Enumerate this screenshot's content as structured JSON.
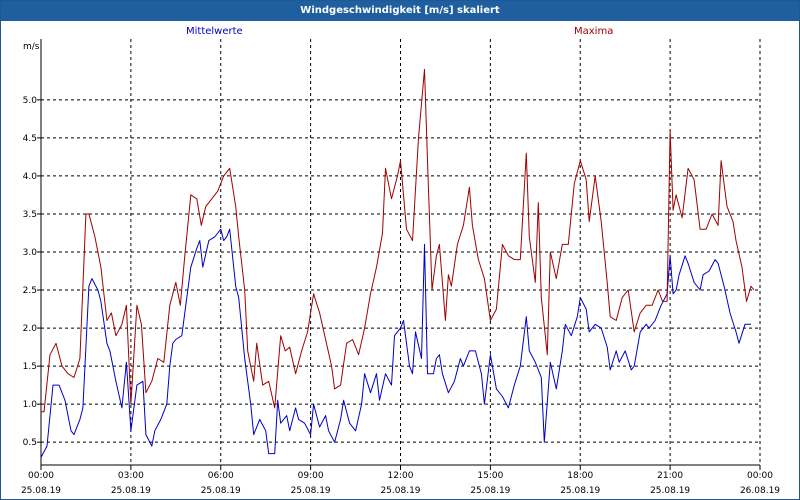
{
  "window": {
    "title": "Windgeschwindigkeit [m/s] skaliert"
  },
  "colors": {
    "titlebar": "#1f5f9f",
    "mittel": "#0000c8",
    "maxima": "#a00000",
    "grid": "#000000"
  },
  "chart_data": {
    "type": "line",
    "title": "Windgeschwindigkeit [m/s] skaliert",
    "ylabel": "m/s",
    "xlabel": "",
    "ylim": [
      0.2,
      5.8
    ],
    "xlim": [
      0,
      24
    ],
    "grid": true,
    "y_ticks": [
      "0.5",
      "1.0",
      "1.5",
      "2.0",
      "2.5",
      "3.0",
      "3.5",
      "4.0",
      "4.5",
      "5.0"
    ],
    "x_ticks": [
      {
        "time": "00:00",
        "date": "25.08.19"
      },
      {
        "time": "03:00",
        "date": "25.08.19"
      },
      {
        "time": "06:00",
        "date": "25.08.19"
      },
      {
        "time": "09:00",
        "date": "25.08.19"
      },
      {
        "time": "12:00",
        "date": "25.08.19"
      },
      {
        "time": "15:00",
        "date": "25.08.19"
      },
      {
        "time": "18:00",
        "date": "25.08.19"
      },
      {
        "time": "21:00",
        "date": "25.08.19"
      },
      {
        "time": "00:00",
        "date": "26.08.19"
      }
    ],
    "series": [
      {
        "name": "Mittelwerte",
        "color": "#0000c8",
        "points": [
          [
            0.0,
            0.3
          ],
          [
            0.2,
            0.45
          ],
          [
            0.4,
            1.25
          ],
          [
            0.6,
            1.25
          ],
          [
            0.8,
            1.05
          ],
          [
            1.0,
            0.65
          ],
          [
            1.1,
            0.6
          ],
          [
            1.3,
            0.8
          ],
          [
            1.4,
            0.95
          ],
          [
            1.6,
            2.55
          ],
          [
            1.7,
            2.65
          ],
          [
            1.9,
            2.5
          ],
          [
            2.0,
            2.35
          ],
          [
            2.2,
            1.8
          ],
          [
            2.3,
            1.7
          ],
          [
            2.5,
            1.3
          ],
          [
            2.7,
            0.95
          ],
          [
            2.85,
            1.55
          ],
          [
            3.0,
            0.65
          ],
          [
            3.2,
            1.25
          ],
          [
            3.4,
            1.3
          ],
          [
            3.5,
            0.6
          ],
          [
            3.7,
            0.45
          ],
          [
            3.8,
            0.65
          ],
          [
            4.0,
            0.8
          ],
          [
            4.2,
            1.0
          ],
          [
            4.3,
            1.5
          ],
          [
            4.4,
            1.8
          ],
          [
            4.5,
            1.85
          ],
          [
            4.7,
            1.9
          ],
          [
            4.85,
            2.35
          ],
          [
            5.0,
            2.8
          ],
          [
            5.2,
            3.05
          ],
          [
            5.3,
            3.15
          ],
          [
            5.4,
            2.8
          ],
          [
            5.6,
            3.15
          ],
          [
            5.8,
            3.2
          ],
          [
            5.9,
            3.25
          ],
          [
            6.0,
            3.3
          ],
          [
            6.1,
            3.15
          ],
          [
            6.2,
            3.2
          ],
          [
            6.3,
            3.3
          ],
          [
            6.5,
            2.55
          ],
          [
            6.6,
            2.4
          ],
          [
            6.8,
            1.6
          ],
          [
            7.0,
            1.0
          ],
          [
            7.1,
            0.6
          ],
          [
            7.3,
            0.8
          ],
          [
            7.5,
            0.65
          ],
          [
            7.6,
            0.35
          ],
          [
            7.8,
            0.35
          ],
          [
            7.9,
            1.05
          ],
          [
            8.0,
            0.75
          ],
          [
            8.2,
            0.85
          ],
          [
            8.3,
            0.65
          ],
          [
            8.5,
            0.95
          ],
          [
            8.6,
            0.8
          ],
          [
            8.8,
            0.75
          ],
          [
            9.0,
            0.6
          ],
          [
            9.1,
            1.0
          ],
          [
            9.3,
            0.7
          ],
          [
            9.5,
            0.85
          ],
          [
            9.6,
            0.65
          ],
          [
            9.8,
            0.5
          ],
          [
            10.0,
            0.8
          ],
          [
            10.1,
            1.05
          ],
          [
            10.3,
            0.75
          ],
          [
            10.5,
            0.65
          ],
          [
            10.7,
            1.0
          ],
          [
            10.8,
            1.4
          ],
          [
            11.0,
            1.15
          ],
          [
            11.2,
            1.4
          ],
          [
            11.3,
            1.05
          ],
          [
            11.5,
            1.4
          ],
          [
            11.7,
            1.25
          ],
          [
            11.8,
            1.9
          ],
          [
            12.0,
            2.0
          ],
          [
            12.1,
            2.1
          ],
          [
            12.3,
            1.5
          ],
          [
            12.4,
            1.4
          ],
          [
            12.5,
            1.95
          ],
          [
            12.7,
            1.6
          ],
          [
            12.8,
            3.1
          ],
          [
            12.9,
            1.4
          ],
          [
            13.1,
            1.4
          ],
          [
            13.2,
            1.6
          ],
          [
            13.3,
            1.65
          ],
          [
            13.4,
            1.4
          ],
          [
            13.6,
            1.15
          ],
          [
            13.8,
            1.3
          ],
          [
            14.0,
            1.6
          ],
          [
            14.1,
            1.5
          ],
          [
            14.3,
            1.7
          ],
          [
            14.5,
            1.7
          ],
          [
            14.7,
            1.4
          ],
          [
            14.8,
            1.0
          ],
          [
            15.0,
            1.65
          ],
          [
            15.2,
            1.2
          ],
          [
            15.4,
            1.1
          ],
          [
            15.6,
            0.95
          ],
          [
            15.8,
            1.25
          ],
          [
            16.0,
            1.5
          ],
          [
            16.2,
            2.15
          ],
          [
            16.3,
            1.7
          ],
          [
            16.5,
            1.55
          ],
          [
            16.7,
            1.35
          ],
          [
            16.8,
            0.5
          ],
          [
            17.0,
            1.55
          ],
          [
            17.2,
            1.2
          ],
          [
            17.4,
            1.7
          ],
          [
            17.5,
            2.05
          ],
          [
            17.7,
            1.9
          ],
          [
            17.9,
            2.15
          ],
          [
            18.0,
            2.4
          ],
          [
            18.2,
            2.25
          ],
          [
            18.3,
            1.95
          ],
          [
            18.5,
            2.05
          ],
          [
            18.7,
            2.0
          ],
          [
            18.9,
            1.75
          ],
          [
            19.0,
            1.45
          ],
          [
            19.2,
            1.7
          ],
          [
            19.3,
            1.55
          ],
          [
            19.5,
            1.7
          ],
          [
            19.7,
            1.45
          ],
          [
            19.8,
            1.5
          ],
          [
            20.0,
            1.95
          ],
          [
            20.2,
            2.05
          ],
          [
            20.3,
            2.0
          ],
          [
            20.5,
            2.1
          ],
          [
            20.7,
            2.3
          ],
          [
            20.9,
            2.45
          ],
          [
            21.0,
            2.95
          ],
          [
            21.1,
            2.45
          ],
          [
            21.2,
            2.5
          ],
          [
            21.3,
            2.7
          ],
          [
            21.5,
            2.95
          ],
          [
            21.6,
            2.85
          ],
          [
            21.8,
            2.6
          ],
          [
            22.0,
            2.5
          ],
          [
            22.1,
            2.7
          ],
          [
            22.3,
            2.75
          ],
          [
            22.5,
            2.9
          ],
          [
            22.6,
            2.85
          ],
          [
            22.8,
            2.55
          ],
          [
            23.0,
            2.2
          ],
          [
            23.2,
            1.95
          ],
          [
            23.3,
            1.8
          ],
          [
            23.5,
            2.05
          ],
          [
            23.7,
            2.05
          ]
        ]
      },
      {
        "name": "Maxima",
        "color": "#a00000",
        "points": [
          [
            0.0,
            0.9
          ],
          [
            0.1,
            0.9
          ],
          [
            0.3,
            1.65
          ],
          [
            0.5,
            1.8
          ],
          [
            0.7,
            1.5
          ],
          [
            0.9,
            1.4
          ],
          [
            1.1,
            1.35
          ],
          [
            1.3,
            1.6
          ],
          [
            1.5,
            3.5
          ],
          [
            1.6,
            3.5
          ],
          [
            1.8,
            3.2
          ],
          [
            2.0,
            2.8
          ],
          [
            2.2,
            2.1
          ],
          [
            2.35,
            2.2
          ],
          [
            2.5,
            1.9
          ],
          [
            2.7,
            2.05
          ],
          [
            2.85,
            2.3
          ],
          [
            3.0,
            1.0
          ],
          [
            3.2,
            2.3
          ],
          [
            3.35,
            2.05
          ],
          [
            3.5,
            1.15
          ],
          [
            3.7,
            1.3
          ],
          [
            3.9,
            1.6
          ],
          [
            4.1,
            1.55
          ],
          [
            4.3,
            2.3
          ],
          [
            4.5,
            2.6
          ],
          [
            4.65,
            2.3
          ],
          [
            4.8,
            2.95
          ],
          [
            5.0,
            3.75
          ],
          [
            5.2,
            3.7
          ],
          [
            5.35,
            3.35
          ],
          [
            5.5,
            3.6
          ],
          [
            5.7,
            3.7
          ],
          [
            5.9,
            3.8
          ],
          [
            6.1,
            4.0
          ],
          [
            6.3,
            4.1
          ],
          [
            6.5,
            3.6
          ],
          [
            6.6,
            3.2
          ],
          [
            6.8,
            2.5
          ],
          [
            6.9,
            1.7
          ],
          [
            7.1,
            1.3
          ],
          [
            7.2,
            1.8
          ],
          [
            7.4,
            1.25
          ],
          [
            7.6,
            1.3
          ],
          [
            7.8,
            0.95
          ],
          [
            8.0,
            1.9
          ],
          [
            8.15,
            1.7
          ],
          [
            8.3,
            1.75
          ],
          [
            8.5,
            1.4
          ],
          [
            8.7,
            1.7
          ],
          [
            8.9,
            1.95
          ],
          [
            9.1,
            2.45
          ],
          [
            9.3,
            2.2
          ],
          [
            9.5,
            1.85
          ],
          [
            9.7,
            1.5
          ],
          [
            9.8,
            1.2
          ],
          [
            10.0,
            1.25
          ],
          [
            10.2,
            1.8
          ],
          [
            10.4,
            1.85
          ],
          [
            10.6,
            1.65
          ],
          [
            10.8,
            2.0
          ],
          [
            11.0,
            2.45
          ],
          [
            11.2,
            2.8
          ],
          [
            11.4,
            3.25
          ],
          [
            11.5,
            4.1
          ],
          [
            11.7,
            3.7
          ],
          [
            11.9,
            4.0
          ],
          [
            12.0,
            4.2
          ],
          [
            12.2,
            3.3
          ],
          [
            12.4,
            3.15
          ],
          [
            12.6,
            4.5
          ],
          [
            12.8,
            5.4
          ],
          [
            12.9,
            4.2
          ],
          [
            13.05,
            2.5
          ],
          [
            13.2,
            2.95
          ],
          [
            13.3,
            3.1
          ],
          [
            13.5,
            2.1
          ],
          [
            13.6,
            2.7
          ],
          [
            13.7,
            2.55
          ],
          [
            13.9,
            3.1
          ],
          [
            14.1,
            3.35
          ],
          [
            14.3,
            3.85
          ],
          [
            14.4,
            3.35
          ],
          [
            14.6,
            2.9
          ],
          [
            14.8,
            2.65
          ],
          [
            15.0,
            2.1
          ],
          [
            15.2,
            2.25
          ],
          [
            15.4,
            3.1
          ],
          [
            15.6,
            2.95
          ],
          [
            15.8,
            2.9
          ],
          [
            16.0,
            2.9
          ],
          [
            16.2,
            4.3
          ],
          [
            16.3,
            3.2
          ],
          [
            16.5,
            2.6
          ],
          [
            16.6,
            3.65
          ],
          [
            16.7,
            2.4
          ],
          [
            16.9,
            1.65
          ],
          [
            17.0,
            3.0
          ],
          [
            17.2,
            2.65
          ],
          [
            17.4,
            3.1
          ],
          [
            17.6,
            3.1
          ],
          [
            17.8,
            3.9
          ],
          [
            18.0,
            4.2
          ],
          [
            18.2,
            3.95
          ],
          [
            18.3,
            3.4
          ],
          [
            18.5,
            4.0
          ],
          [
            18.7,
            3.4
          ],
          [
            18.9,
            2.6
          ],
          [
            19.0,
            2.15
          ],
          [
            19.2,
            2.1
          ],
          [
            19.4,
            2.4
          ],
          [
            19.6,
            2.5
          ],
          [
            19.8,
            1.95
          ],
          [
            20.0,
            2.2
          ],
          [
            20.2,
            2.3
          ],
          [
            20.4,
            2.3
          ],
          [
            20.6,
            2.5
          ],
          [
            20.75,
            2.35
          ],
          [
            20.9,
            2.35
          ],
          [
            21.0,
            4.6
          ],
          [
            21.1,
            3.55
          ],
          [
            21.2,
            3.75
          ],
          [
            21.4,
            3.45
          ],
          [
            21.6,
            4.1
          ],
          [
            21.8,
            3.95
          ],
          [
            22.0,
            3.3
          ],
          [
            22.2,
            3.3
          ],
          [
            22.4,
            3.5
          ],
          [
            22.6,
            3.35
          ],
          [
            22.7,
            4.2
          ],
          [
            22.9,
            3.6
          ],
          [
            23.1,
            3.4
          ],
          [
            23.2,
            3.15
          ],
          [
            23.4,
            2.8
          ],
          [
            23.55,
            2.35
          ],
          [
            23.7,
            2.55
          ],
          [
            23.8,
            2.5
          ]
        ]
      }
    ]
  }
}
